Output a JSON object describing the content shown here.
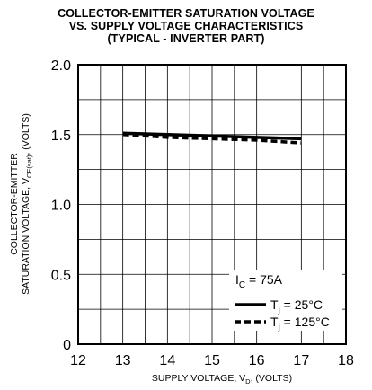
{
  "chart_data": {
    "type": "line",
    "title_lines": [
      "COLLECTOR-EMITTER SATURATION VOLTAGE",
      "VS. SUPPLY VOLTAGE CHARACTERISTICS",
      "(TYPICAL - INVERTER PART)"
    ],
    "xlabel": {
      "main": "SUPPLY VOLTAGE, V",
      "sub": "D",
      "tail": ", (VOLTS)"
    },
    "ylabel": {
      "line1": "COLLECTOR-EMITTER",
      "line2_main": "SATURATION VOLTAGE, V",
      "line2_sub": "CE(sat)",
      "line2_tail": ", (VOLTS)"
    },
    "xlim": [
      12,
      18
    ],
    "ylim": [
      0,
      2.0
    ],
    "x_ticks": [
      "12",
      "13",
      "14",
      "15",
      "16",
      "17",
      "18"
    ],
    "y_ticks": [
      "0",
      "0.5",
      "1.0",
      "1.5",
      "2.0"
    ],
    "grid": true,
    "legend_position": "bottom-right",
    "legend_header": {
      "main": "I",
      "sub": "C",
      "tail": " = 75A"
    },
    "series": [
      {
        "name_main": "T",
        "name_sub": "j",
        "name_tail": " = 25°C",
        "style": "solid",
        "x": [
          13,
          14,
          15,
          16,
          17
        ],
        "y": [
          1.51,
          1.5,
          1.49,
          1.48,
          1.47
        ]
      },
      {
        "name_main": "T",
        "name_sub": "j",
        "name_tail": " = 125°C",
        "style": "dashed",
        "x": [
          13,
          14,
          15,
          16,
          17
        ],
        "y": [
          1.5,
          1.48,
          1.47,
          1.46,
          1.44
        ]
      }
    ]
  }
}
